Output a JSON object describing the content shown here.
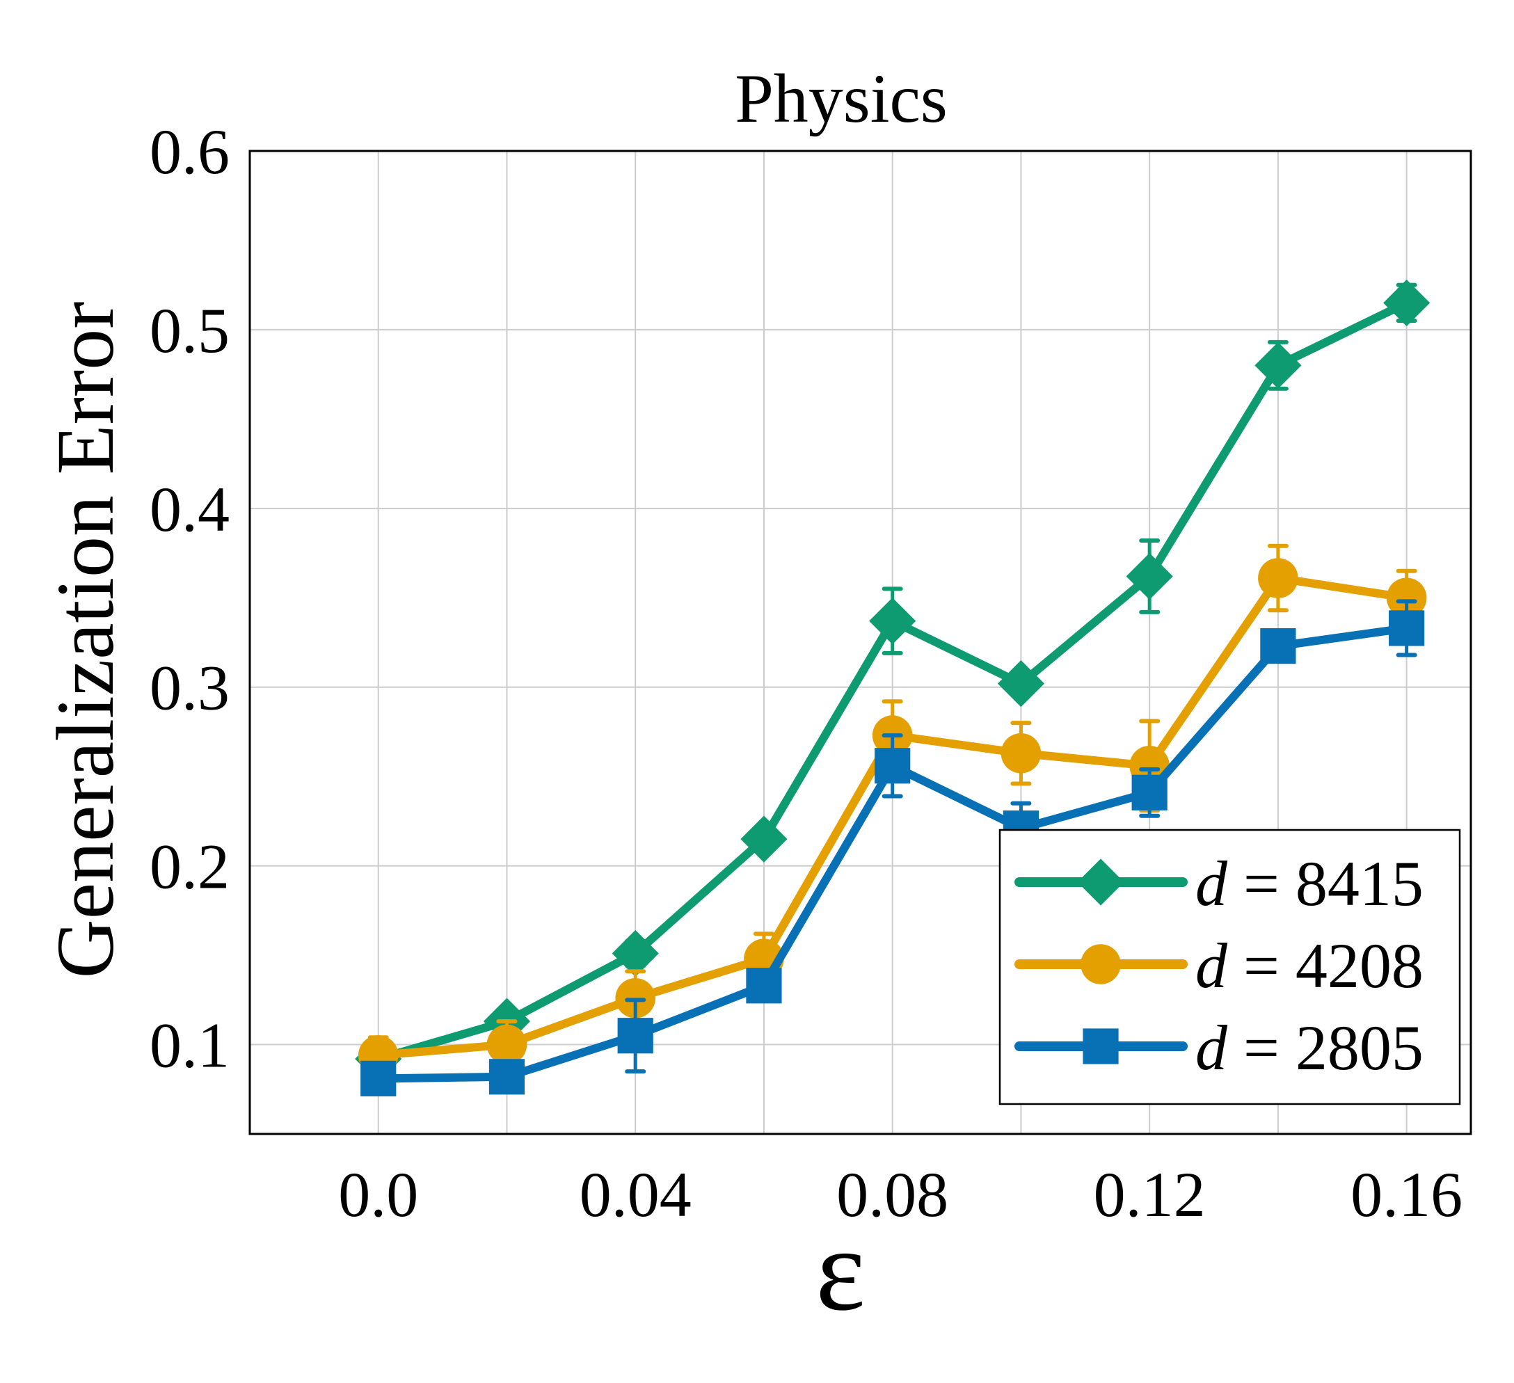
{
  "chart_data": {
    "type": "line",
    "title": "Physics",
    "xlabel": "ε",
    "ylabel": "Generalization Error",
    "xlim": [
      -0.02,
      0.17
    ],
    "ylim": [
      0.05,
      0.6
    ],
    "x_ticks": [
      "0.0",
      "0.04",
      "0.08",
      "0.12",
      "0.16"
    ],
    "x_tick_values": [
      0.0,
      0.04,
      0.08,
      0.12,
      0.16
    ],
    "y_ticks": [
      "0.1",
      "0.2",
      "0.3",
      "0.4",
      "0.5",
      "0.6"
    ],
    "y_tick_values": [
      0.1,
      0.2,
      0.3,
      0.4,
      0.5,
      0.6
    ],
    "grid": true,
    "legend_position": "bottom-right",
    "x": [
      0.0,
      0.02,
      0.04,
      0.06,
      0.08,
      0.1,
      0.12,
      0.14,
      0.16
    ],
    "series": [
      {
        "name_var": "d",
        "name_rest": " = 8415",
        "color": "#0f9b72",
        "marker": "diamond",
        "values": [
          0.092,
          0.113,
          0.151,
          0.215,
          0.337,
          0.302,
          0.362,
          0.48,
          0.515
        ],
        "errors": [
          0.006,
          0.005,
          0.007,
          0.006,
          0.018,
          0.006,
          0.02,
          0.013,
          0.01
        ]
      },
      {
        "name_var": "d",
        "name_rest": " = 4208",
        "color": "#e3a000",
        "marker": "circle",
        "values": [
          0.094,
          0.1,
          0.126,
          0.148,
          0.273,
          0.263,
          0.256,
          0.361,
          0.35
        ],
        "errors": [
          0.01,
          0.013,
          0.015,
          0.014,
          0.019,
          0.017,
          0.025,
          0.018,
          0.015
        ]
      },
      {
        "name_var": "d",
        "name_rest": " = 2805",
        "color": "#0870b5",
        "marker": "square",
        "values": [
          0.081,
          0.082,
          0.105,
          0.133,
          0.256,
          0.221,
          0.241,
          0.323,
          0.333
        ],
        "errors": [
          0.004,
          0.004,
          0.02,
          0.006,
          0.017,
          0.014,
          0.013,
          0.007,
          0.015
        ]
      }
    ]
  }
}
